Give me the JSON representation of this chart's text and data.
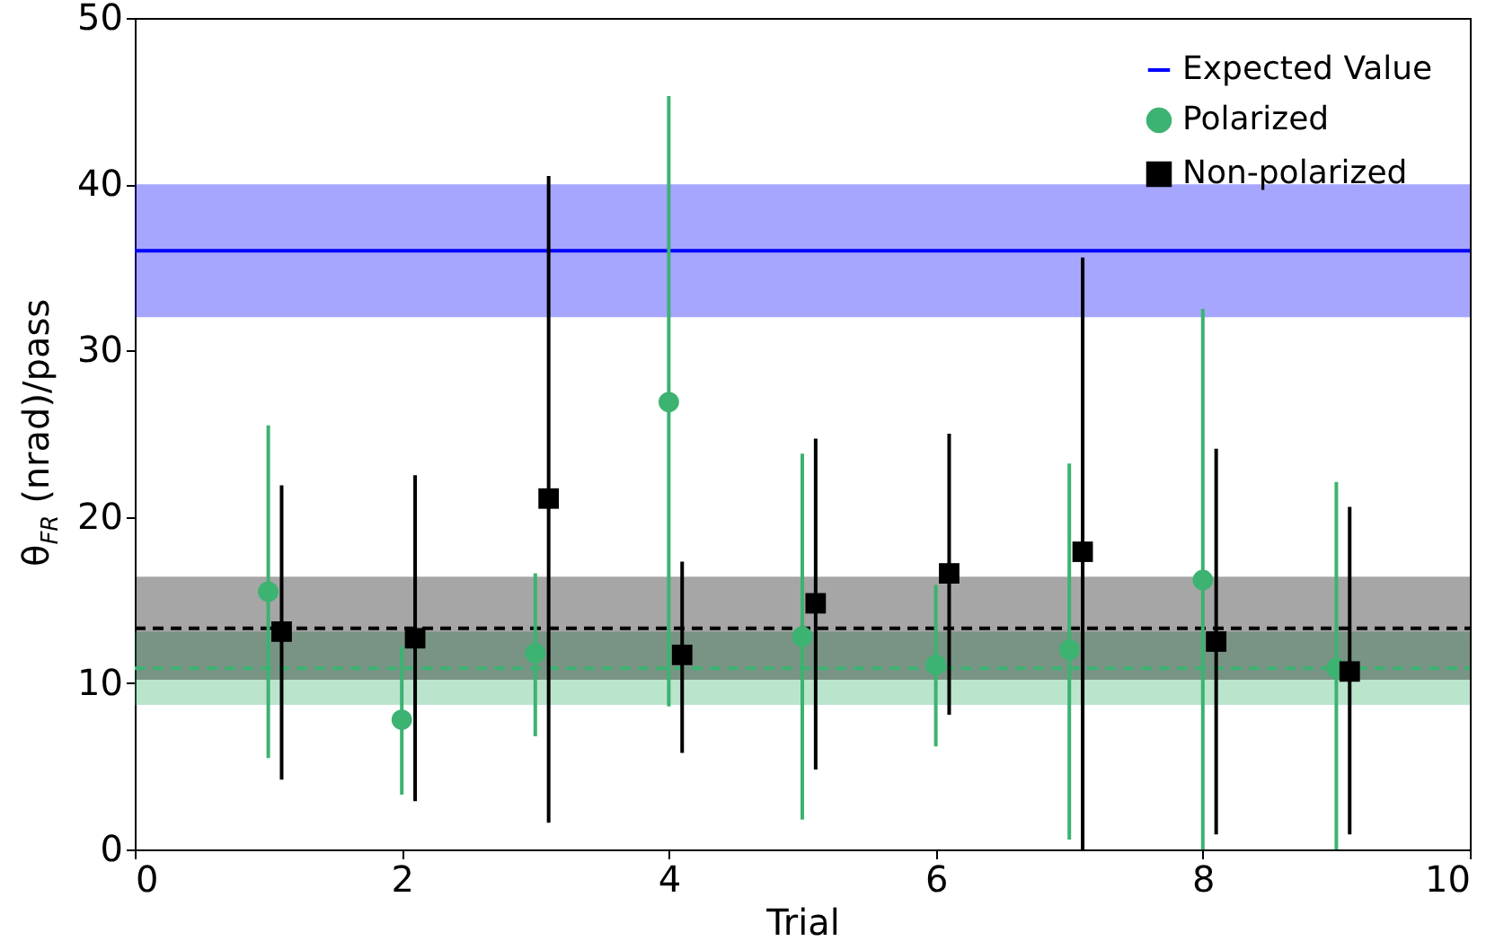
{
  "chart_data": {
    "type": "scatter",
    "xlabel": "Trial",
    "ylabel": "θ$_{FR}$ (nrad)/pass",
    "xlim": [
      0,
      10
    ],
    "xticks": [
      0,
      2,
      4,
      6,
      8,
      10
    ],
    "ylim": [
      0,
      50
    ],
    "yticks": [
      0,
      10,
      20,
      30,
      40,
      50
    ],
    "grid": false,
    "legend": "top right",
    "series": [
      {
        "name": "Polarized",
        "color": "#3cb371",
        "marker": "circle",
        "x": [
          1,
          2,
          3,
          4,
          5,
          6,
          7,
          8,
          9
        ],
        "values": [
          15.5,
          7.8,
          11.8,
          26.9,
          12.8,
          11.1,
          12.0,
          16.2,
          10.9
        ],
        "errors": [
          [
            5.5,
            25.5
          ],
          [
            3.3,
            12.2
          ],
          [
            6.8,
            16.6
          ],
          [
            8.6,
            45.3
          ],
          [
            1.8,
            23.8
          ],
          [
            6.2,
            15.9
          ],
          [
            0.6,
            23.2
          ],
          [
            0,
            32.5
          ],
          [
            0,
            22.1
          ]
        ]
      },
      {
        "name": "Non-polarized",
        "color": "#000000",
        "marker": "square",
        "x": [
          1.1,
          2.1,
          3.1,
          4.1,
          5.1,
          6.1,
          7.1,
          8.1,
          9.1
        ],
        "values": [
          13.1,
          12.7,
          21.1,
          11.7,
          14.8,
          16.6,
          17.9,
          12.5,
          10.7
        ],
        "errors": [
          [
            4.2,
            21.9
          ],
          [
            2.9,
            22.5
          ],
          [
            1.6,
            40.5
          ],
          [
            5.8,
            17.3
          ],
          [
            4.8,
            24.7
          ],
          [
            8.1,
            25.0
          ],
          [
            0,
            35.6
          ],
          [
            0.9,
            24.1
          ],
          [
            0.9,
            20.6
          ]
        ]
      }
    ],
    "ref_lines": [
      {
        "axis": "y",
        "value": 36,
        "label": "Expected Value",
        "color": "#0000ff",
        "line_style": "solid"
      },
      {
        "axis": "y",
        "value": 13.3,
        "color": "#000000",
        "line_style": "dashed"
      },
      {
        "axis": "y",
        "value": 10.9,
        "color": "#3cb371",
        "line_style": "dashed"
      }
    ],
    "bands": [
      {
        "axis": "y",
        "from": 32,
        "to": 40,
        "color": "#0000ff"
      },
      {
        "axis": "y",
        "from": 8.7,
        "to": 13.1,
        "color": "#3cb371"
      },
      {
        "axis": "y",
        "from": 10.2,
        "to": 16.4,
        "color": "#000000"
      }
    ]
  }
}
